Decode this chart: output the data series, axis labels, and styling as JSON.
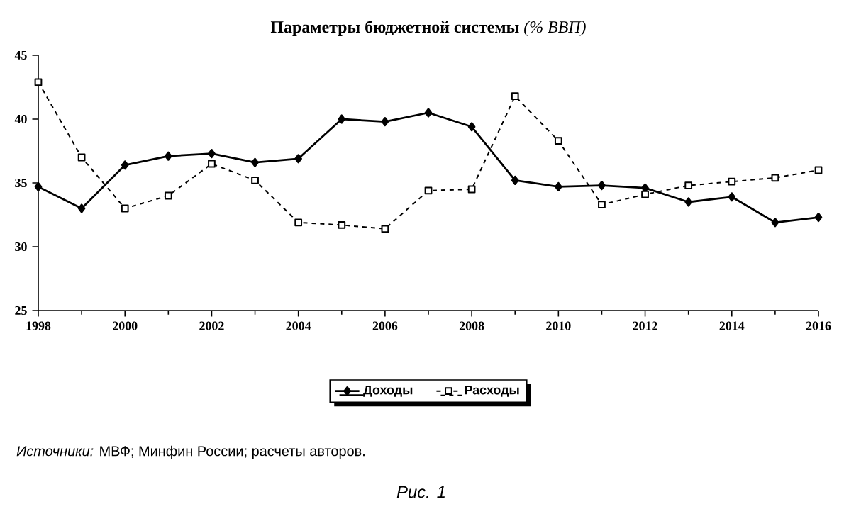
{
  "chart_data": {
    "type": "line",
    "title": "**Параметры бюджетной системы** *(% ВВП)*",
    "x": [
      1998,
      1999,
      2000,
      2001,
      2002,
      2003,
      2004,
      2005,
      2006,
      2007,
      2008,
      2009,
      2010,
      2011,
      2012,
      2013,
      2014,
      2015,
      2016
    ],
    "series": [
      {
        "name": "Доходы",
        "color": "#000000",
        "marker": "diamond",
        "line_style": "solid",
        "values": [
          34.7,
          33.0,
          36.4,
          37.1,
          37.3,
          36.6,
          36.9,
          40.0,
          39.8,
          40.5,
          39.4,
          35.2,
          34.7,
          34.8,
          34.6,
          33.5,
          33.9,
          31.9,
          32.3
        ]
      },
      {
        "name": "Расходы",
        "color": "#000000",
        "marker": "square",
        "line_style": "dashed",
        "values": [
          42.9,
          37.0,
          33.0,
          34.0,
          36.5,
          35.2,
          31.9,
          31.7,
          31.4,
          34.4,
          34.5,
          41.8,
          38.3,
          33.3,
          34.1,
          34.8,
          35.1,
          35.4,
          36.0
        ]
      }
    ],
    "xlim": [
      1998,
      2016
    ],
    "xticks": [
      1998,
      2000,
      2002,
      2004,
      2006,
      2008,
      2010,
      2012,
      2014,
      2016
    ],
    "ylim": [
      25,
      45
    ],
    "yticks": [
      25,
      30,
      35,
      40,
      45
    ],
    "grid": false,
    "legend": "bottom",
    "annotations": [
      "*Источники:* МВФ; Минфин России; расчеты авторов.",
      "*Рис. 1*"
    ]
  }
}
